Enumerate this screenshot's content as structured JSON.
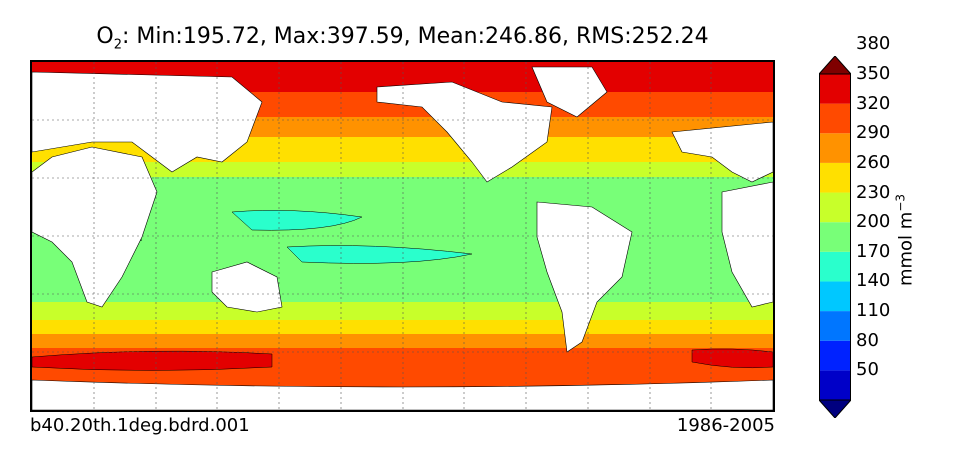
{
  "title": {
    "prefix": "O",
    "subscript": "2",
    "stats": ": Min:195.72, Max:397.59, Mean:246.86, RMS:252.24"
  },
  "footer": {
    "case_name": "b40.20th.1deg.bdrd.001",
    "period": "1986-2005"
  },
  "colorbar": {
    "units_prefix": "mmol m",
    "units_exponent": "−3",
    "levels": [
      "50",
      "80",
      "110",
      "140",
      "170",
      "200",
      "230",
      "260",
      "290",
      "320",
      "350",
      "380"
    ],
    "colors": [
      "#00007f",
      "#0000c8",
      "#0022ff",
      "#0076ff",
      "#00c8ff",
      "#2affcc",
      "#78ff78",
      "#c8ff2a",
      "#ffe000",
      "#ff9200",
      "#ff4a00",
      "#e30000",
      "#7f0000"
    ]
  },
  "map": {
    "field": "O2",
    "land_color": "#ffffff",
    "grid": "dotted"
  }
}
